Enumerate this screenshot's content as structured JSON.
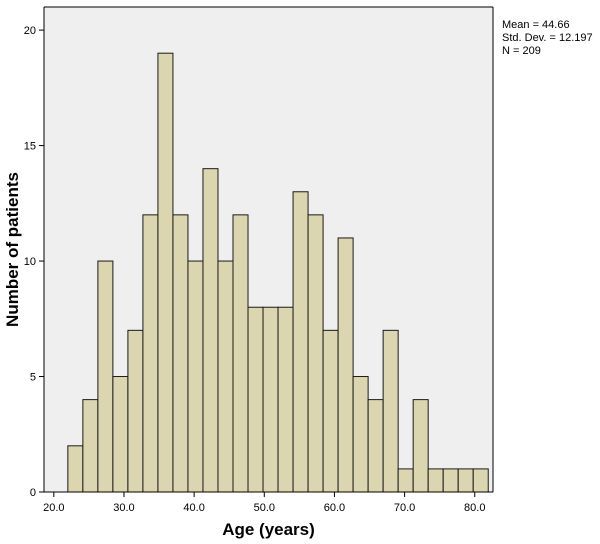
{
  "chart_data": {
    "type": "bar",
    "title": "",
    "xlabel": "Age (years)",
    "ylabel": "Number of patients",
    "xlim": [
      18.6,
      82.6
    ],
    "ylim": [
      0,
      21
    ],
    "xticks": [
      "20.0",
      "30.0",
      "40.0",
      "50.0",
      "60.0",
      "70.0",
      "80.0"
    ],
    "yticks": [
      "0",
      "5",
      "10",
      "15",
      "20"
    ],
    "bin_width": 2.14,
    "bins": [
      {
        "start": 22.0,
        "count": 2
      },
      {
        "start": 24.14,
        "count": 4
      },
      {
        "start": 26.28,
        "count": 10
      },
      {
        "start": 28.42,
        "count": 5
      },
      {
        "start": 30.56,
        "count": 7
      },
      {
        "start": 32.7,
        "count": 12
      },
      {
        "start": 34.84,
        "count": 19
      },
      {
        "start": 36.98,
        "count": 12
      },
      {
        "start": 39.12,
        "count": 10
      },
      {
        "start": 41.26,
        "count": 14
      },
      {
        "start": 43.4,
        "count": 10
      },
      {
        "start": 45.54,
        "count": 12
      },
      {
        "start": 47.68,
        "count": 8
      },
      {
        "start": 49.82,
        "count": 8
      },
      {
        "start": 51.96,
        "count": 8
      },
      {
        "start": 54.1,
        "count": 13
      },
      {
        "start": 56.24,
        "count": 12
      },
      {
        "start": 58.38,
        "count": 7
      },
      {
        "start": 60.52,
        "count": 11
      },
      {
        "start": 62.66,
        "count": 5
      },
      {
        "start": 64.8,
        "count": 4
      },
      {
        "start": 66.94,
        "count": 7
      },
      {
        "start": 69.08,
        "count": 1
      },
      {
        "start": 71.22,
        "count": 4
      },
      {
        "start": 73.36,
        "count": 1
      },
      {
        "start": 75.5,
        "count": 1
      },
      {
        "start": 77.64,
        "count": 1
      },
      {
        "start": 79.78,
        "count": 1
      }
    ],
    "colors": {
      "plot_background": "#efefef",
      "bar_fill": "#dcd6b0",
      "bar_stroke": "#1a1a1a",
      "axis": "#000000"
    },
    "grid": false,
    "statistics": {
      "mean": "Mean = 44.66",
      "std_dev": "Std. Dev. = 12.197",
      "n": "N = 209"
    }
  }
}
